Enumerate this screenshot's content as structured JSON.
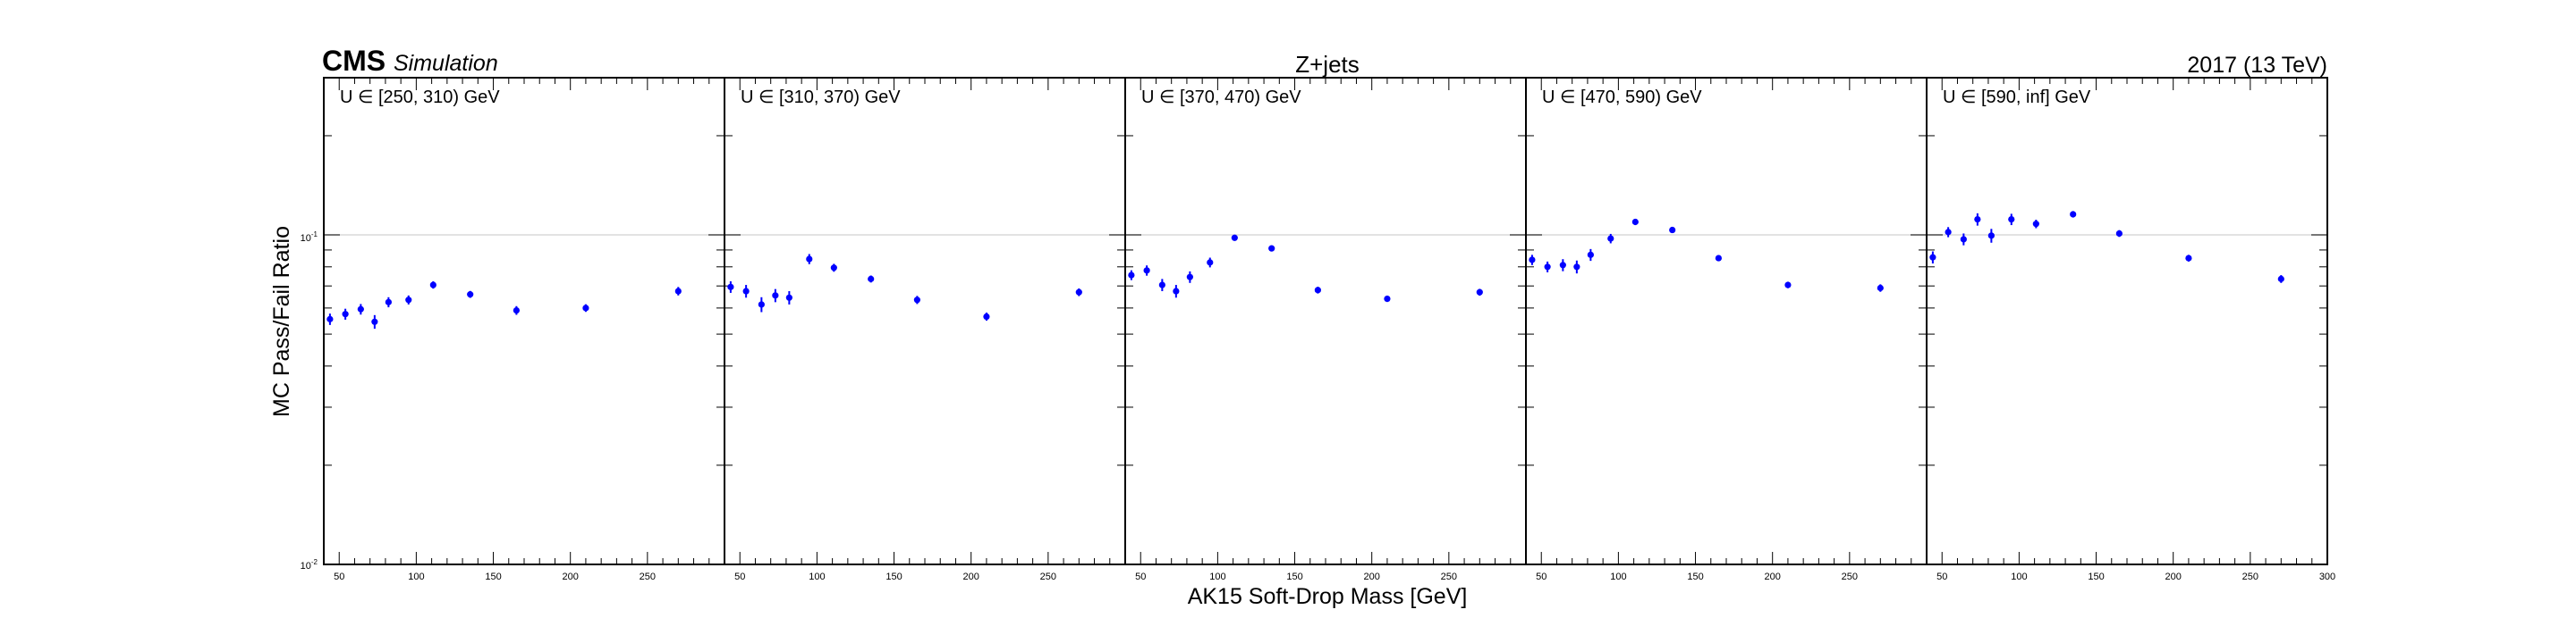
{
  "header": {
    "experiment": "CMS",
    "label": "Simulation",
    "process": "Z+jets",
    "lumi": "2017 (13 TeV)"
  },
  "axes": {
    "ylabel": "MC Pass/Fail Ratio",
    "xlabel": "AK15 Soft-Drop Mass [GeV]",
    "ytick_top": "10",
    "ytick_top_exp": "-1",
    "ytick_bottom": "10",
    "ytick_bottom_exp": "-2"
  },
  "colors": {
    "marker": "#0000ff",
    "frame": "#000000",
    "ref_line": "#d9d9d9"
  },
  "chart_data": {
    "type": "scatter",
    "title": "Z+jets",
    "xlabel": "AK15 Soft-Drop Mass [GeV]",
    "ylabel": "MC Pass/Fail Ratio",
    "xlim": [
      40,
      300
    ],
    "ylim": [
      0.01,
      0.3
    ],
    "yscale": "log",
    "grid": false,
    "reference_line": 0.1,
    "x_ticks": [
      50,
      100,
      150,
      200,
      250
    ],
    "x_ticks_last_panel": [
      50,
      100,
      150,
      200,
      250,
      300
    ],
    "panels": [
      {
        "label": "U ∈ [250, 310) GeV",
        "x": [
          44,
          54,
          64,
          73,
          82,
          95,
          111,
          135,
          165,
          210,
          270
        ],
        "y": [
          0.0555,
          0.0575,
          0.0595,
          0.0545,
          0.0625,
          0.0635,
          0.0705,
          0.066,
          0.059,
          0.06,
          0.0675
        ],
        "yerr": [
          0.0022,
          0.0022,
          0.0022,
          0.0026,
          0.0022,
          0.002,
          0.0018,
          0.0016,
          0.0018,
          0.0016,
          0.002
        ]
      },
      {
        "label": "U ∈ [310, 370) GeV",
        "x": [
          44,
          54,
          64,
          73,
          82,
          95,
          111,
          135,
          165,
          210,
          270
        ],
        "y": [
          0.0695,
          0.0675,
          0.0615,
          0.0655,
          0.0645,
          0.0845,
          0.0795,
          0.0735,
          0.0635,
          0.0565,
          0.067
        ],
        "yerr": [
          0.0028,
          0.003,
          0.0032,
          0.003,
          0.003,
          0.003,
          0.0022,
          0.0018,
          0.0018,
          0.0016,
          0.0018
        ]
      },
      {
        "label": "U ∈ [370, 470) GeV",
        "x": [
          44,
          54,
          64,
          73,
          82,
          95,
          111,
          135,
          165,
          210,
          270
        ],
        "y": [
          0.0755,
          0.078,
          0.0705,
          0.0675,
          0.0745,
          0.0825,
          0.098,
          0.091,
          0.068,
          0.064,
          0.067
        ],
        "yerr": [
          0.0026,
          0.0028,
          0.003,
          0.003,
          0.003,
          0.0028,
          0.002,
          0.0018,
          0.0016,
          0.0014,
          0.0016
        ]
      },
      {
        "label": "U ∈ [470, 590) GeV",
        "x": [
          44,
          54,
          64,
          73,
          82,
          95,
          111,
          135,
          165,
          210,
          270
        ],
        "y": [
          0.084,
          0.08,
          0.081,
          0.08,
          0.087,
          0.0975,
          0.1095,
          0.1035,
          0.085,
          0.0705,
          0.069
        ],
        "yerr": [
          0.003,
          0.003,
          0.0034,
          0.0036,
          0.0036,
          0.0032,
          0.0024,
          0.002,
          0.0018,
          0.0016,
          0.0018
        ]
      },
      {
        "label": "U ∈ [590, inf] GeV",
        "x": [
          44,
          54,
          64,
          73,
          82,
          95,
          111,
          135,
          165,
          210,
          270
        ],
        "y": [
          0.0855,
          0.102,
          0.097,
          0.1115,
          0.0995,
          0.1115,
          0.108,
          0.1155,
          0.101,
          0.085,
          0.0735
        ],
        "yerr": [
          0.0036,
          0.0036,
          0.004,
          0.0048,
          0.0048,
          0.0044,
          0.0032,
          0.0026,
          0.0024,
          0.002,
          0.002
        ]
      }
    ]
  }
}
